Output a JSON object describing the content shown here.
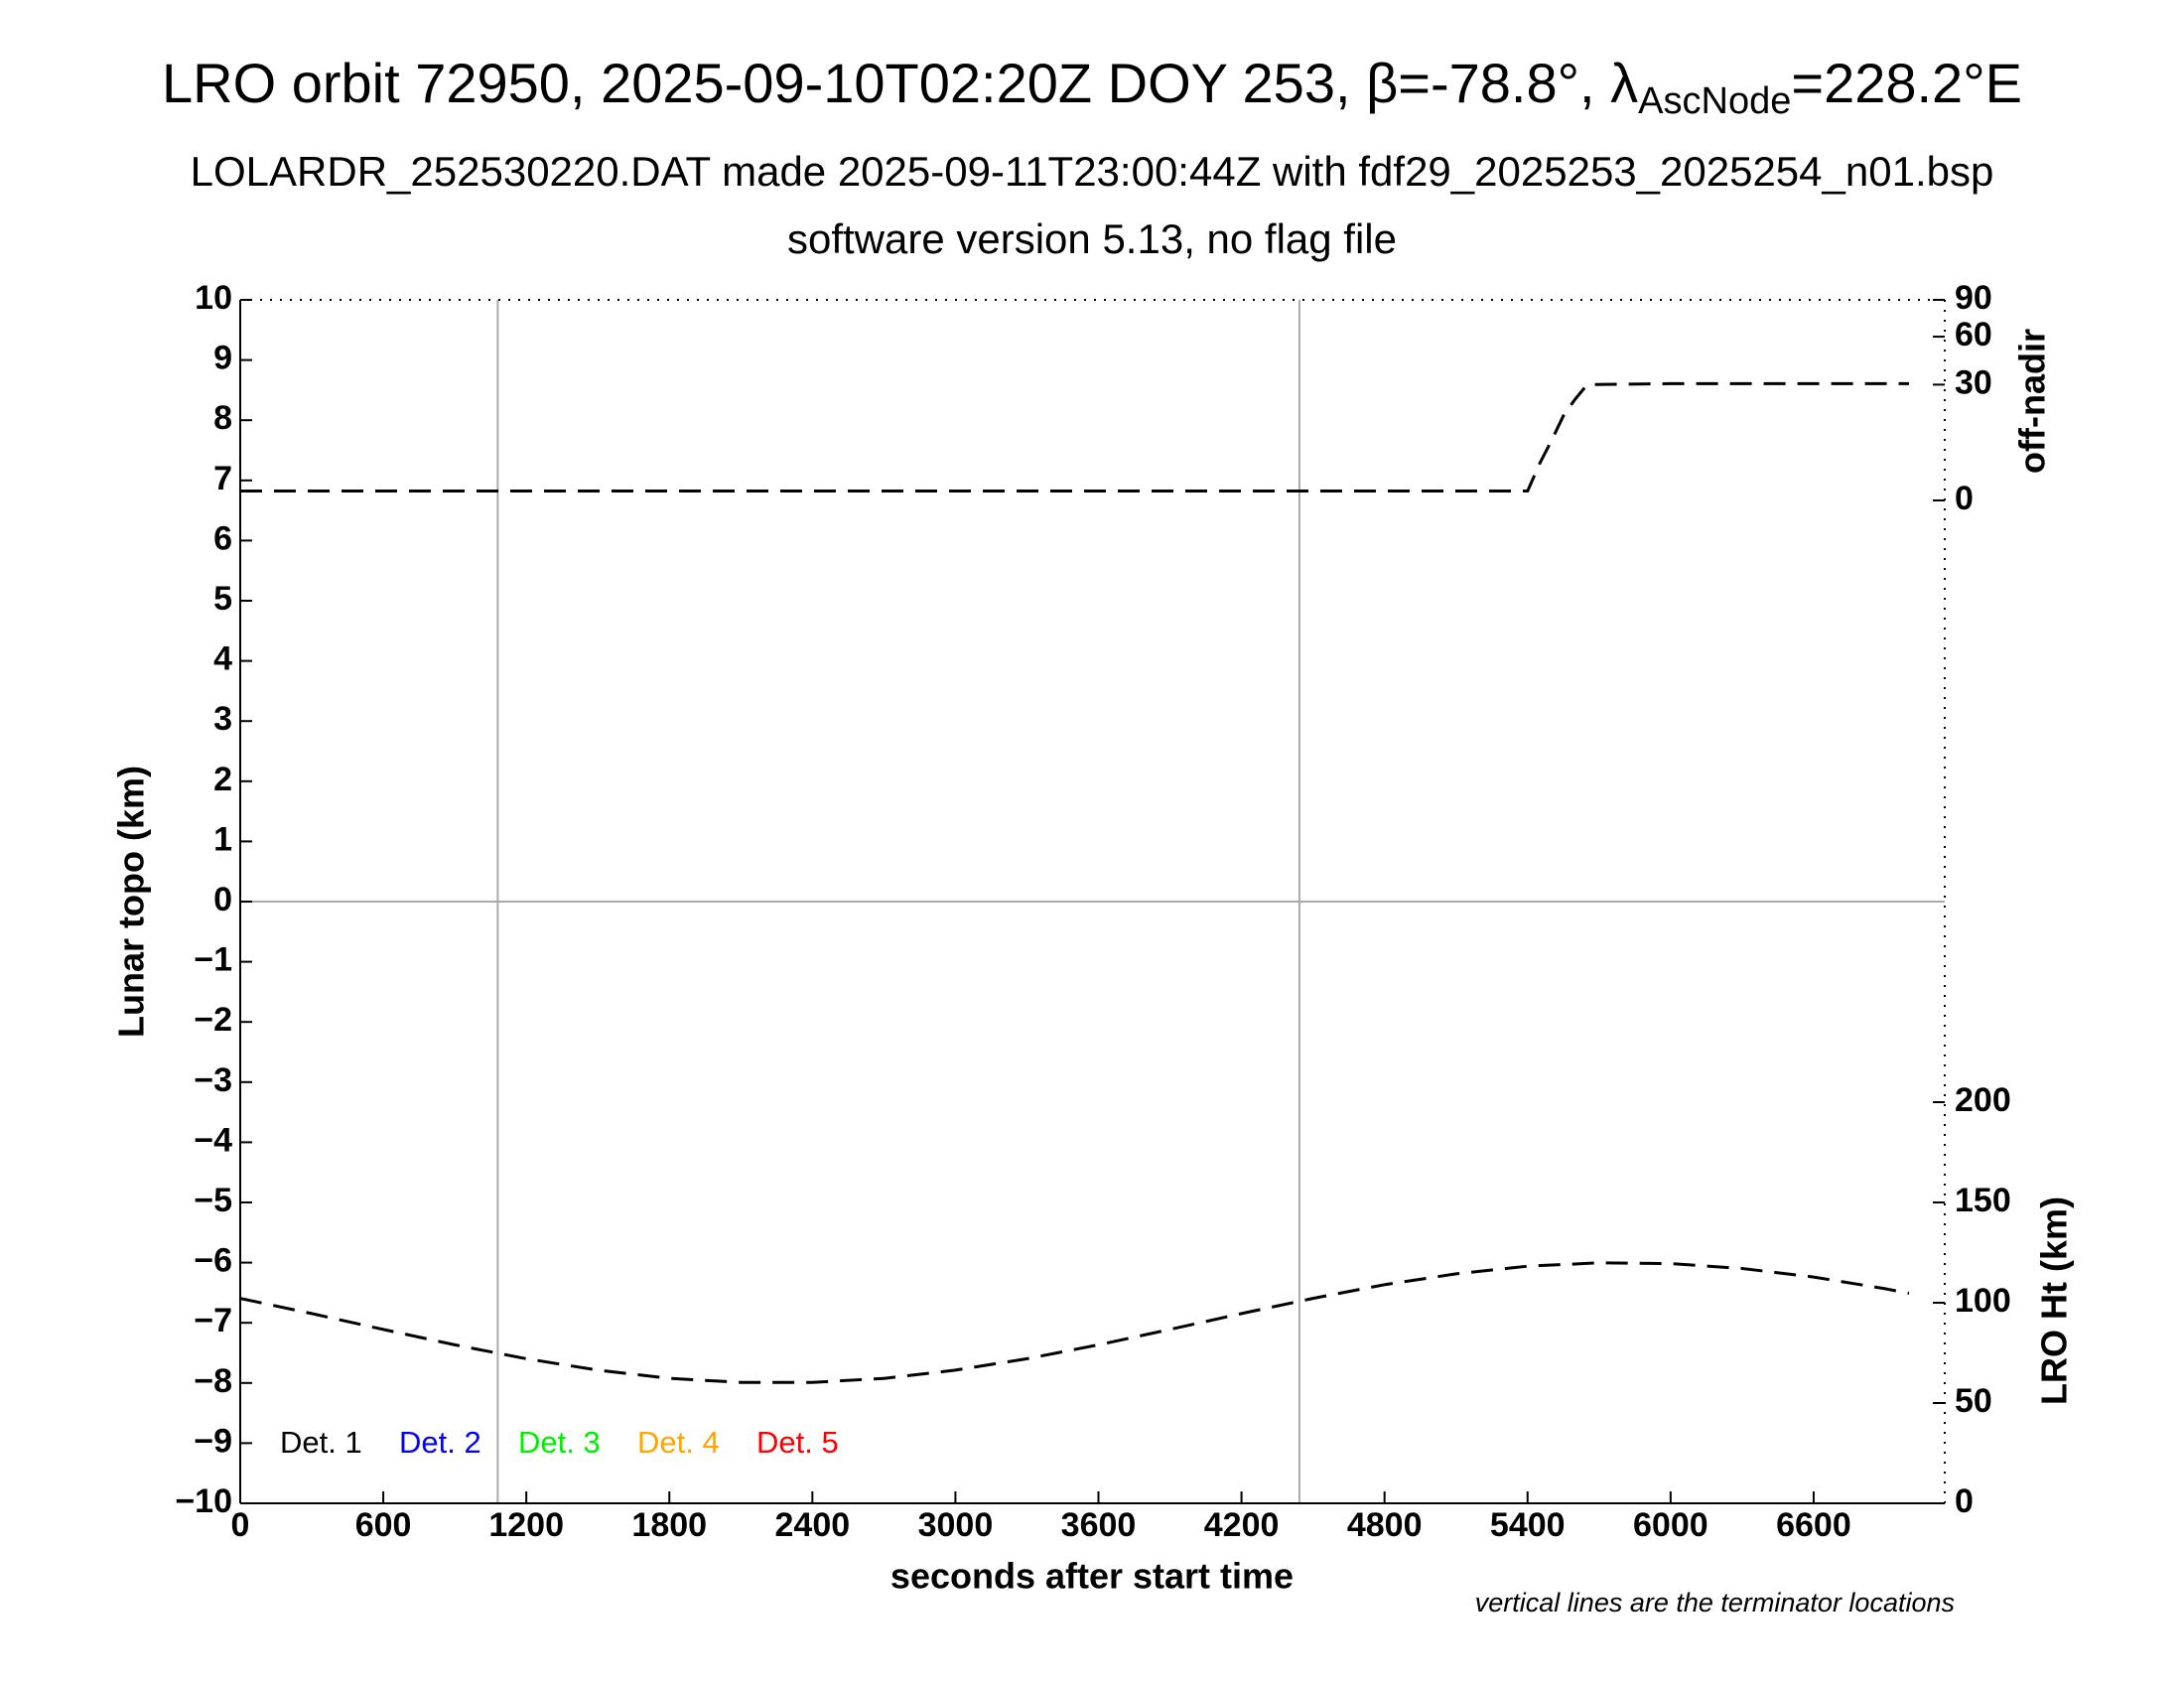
{
  "chart_data": {
    "type": "line",
    "title": {
      "main": "LRO orbit 72950, 2025-09-10T02:20Z DOY 253, β=-78.8°, λ",
      "sub": "AscNode",
      "end": "=228.2°E"
    },
    "subtitle": "LOLARDR_252530220.DAT made 2025-09-11T23:00:44Z with fdf29_2025253_2025254_n01.bsp",
    "subtitle2": "software version 5.13, no flag file",
    "xlabel": "seconds after start time",
    "ylabel": "Lunar topo (km)",
    "y2label": "off-nadir",
    "y3label": "LRO Ht (km)",
    "note": "vertical lines are the terminator locations",
    "xlim": [
      0,
      7150
    ],
    "xticks": [
      0,
      600,
      1200,
      1800,
      2400,
      3000,
      3600,
      4200,
      4800,
      5400,
      6000,
      6600
    ],
    "ylim": [
      -10,
      10
    ],
    "yticks": [
      {
        "value": -10,
        "label": "−10"
      },
      {
        "value": -9,
        "label": "−9"
      },
      {
        "value": -8,
        "label": "−8"
      },
      {
        "value": -7,
        "label": "−7"
      },
      {
        "value": -6,
        "label": "−6"
      },
      {
        "value": -5,
        "label": "−5"
      },
      {
        "value": -4,
        "label": "−4"
      },
      {
        "value": -3,
        "label": "−3"
      },
      {
        "value": -2,
        "label": "−2"
      },
      {
        "value": -1,
        "label": "−1"
      },
      0,
      1,
      2,
      3,
      4,
      5,
      6,
      7,
      8,
      9,
      10
    ],
    "y2lim": [
      0,
      90
    ],
    "y2scale": "sqrt",
    "y2ticks": [
      0,
      30,
      60,
      90
    ],
    "y3lim": [
      0,
      200
    ],
    "y3ticks": [
      0,
      50,
      100,
      150,
      200
    ],
    "terminators": [
      1080,
      4443
    ],
    "legend": [
      {
        "label": "Det. 1",
        "color": "#000000"
      },
      {
        "label": "Det. 2",
        "color": "#0000ff"
      },
      {
        "label": "Det. 3",
        "color": "#00ee00"
      },
      {
        "label": "Det. 4",
        "color": "#ffa500"
      },
      {
        "label": "Det. 5",
        "color": "#ff0000"
      }
    ],
    "series": [
      {
        "axis": "y2",
        "color": "#000000",
        "dashed": true,
        "x": [
          0,
          600,
          1200,
          1800,
          2400,
          3000,
          3600,
          4200,
          4800,
          5400,
          5450,
          5500,
          5550,
          5600,
          5650,
          6000,
          6500,
          7000
        ],
        "values": [
          0.2,
          0.2,
          0.2,
          0.2,
          0.2,
          0.2,
          0.2,
          0.2,
          0.2,
          0.2,
          3,
          8,
          16,
          23,
          30,
          30.5,
          30.5,
          30.5
        ]
      },
      {
        "axis": "y3",
        "color": "#000000",
        "dashed": true,
        "x": [
          0,
          300,
          600,
          900,
          1200,
          1500,
          1800,
          2100,
          2400,
          2700,
          3000,
          3300,
          3600,
          3900,
          4200,
          4500,
          4800,
          5100,
          5400,
          5700,
          6000,
          6300,
          6600,
          6900,
          7000
        ],
        "values": [
          102.2,
          94.6,
          86.7,
          79.0,
          72.1,
          66.4,
          62.3,
          60.3,
          60.3,
          62.3,
          66.4,
          72.1,
          79.0,
          86.7,
          94.6,
          102.2,
          109.0,
          114.4,
          118.2,
          119.9,
          119.5,
          117.1,
          112.8,
          107.0,
          104.7
        ]
      }
    ]
  }
}
